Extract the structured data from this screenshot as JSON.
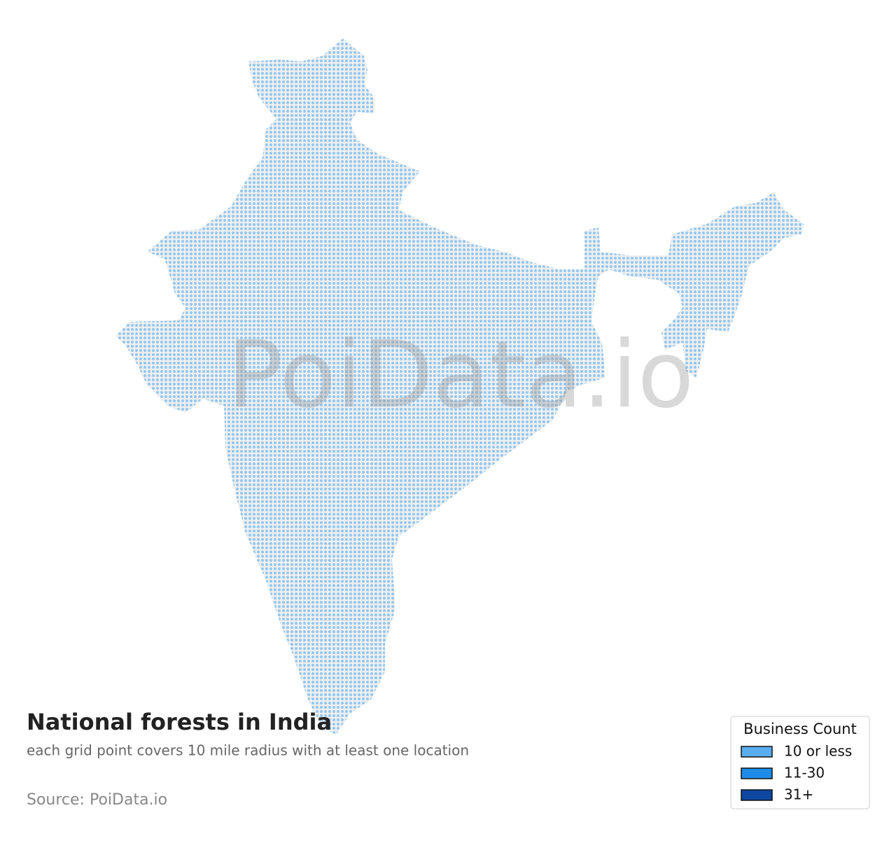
{
  "title": "National forests in India",
  "subtitle": "each grid point covers 10 mile radius with at least one location",
  "source": "Source: PoiData.io",
  "watermark": "PoiData.io",
  "legend": {
    "title": "Business Count",
    "items": [
      {
        "label": "10 or less",
        "color": "#5aaef0"
      },
      {
        "label": "11-30",
        "color": "#1e8ce8"
      },
      {
        "label": "31+",
        "color": "#0d47a1"
      }
    ]
  }
}
